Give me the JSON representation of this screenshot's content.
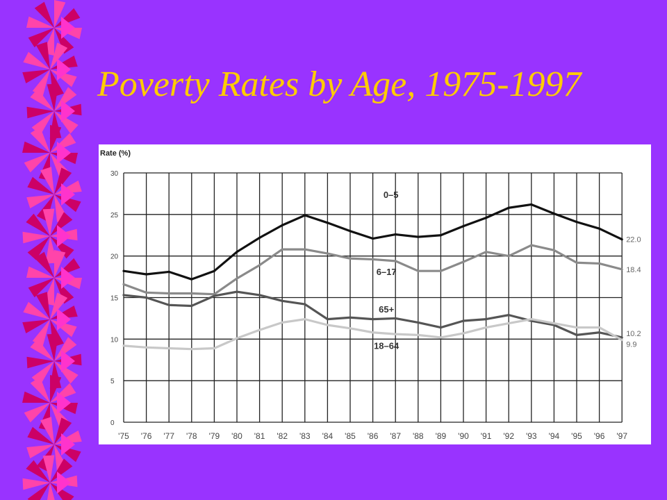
{
  "slide": {
    "title": "Poverty Rates by Age, 1975-1997",
    "colors": {
      "background": "#9933ff",
      "title": "#ffcc00",
      "decor_pink": "#ff44aa",
      "decor_dark": "#cc0066",
      "decor_magenta": "#ff33cc"
    }
  },
  "chart_data": {
    "type": "line",
    "title": "",
    "ylabel": "Rate (%)",
    "xlabel": "",
    "ylim": [
      0,
      30
    ],
    "yticks": [
      0,
      5,
      10,
      15,
      20,
      25,
      30
    ],
    "categories": [
      "'75",
      "'76",
      "'77",
      "'78",
      "'79",
      "'80",
      "'81",
      "'82",
      "'83",
      "'84",
      "'85",
      "'86",
      "'87",
      "'88",
      "'89",
      "'90",
      "'91",
      "'92",
      "'93",
      "'94",
      "'95",
      "'96",
      "'97"
    ],
    "grid": true,
    "series": [
      {
        "name": "0–5",
        "color": "#111111",
        "values": [
          18.2,
          17.8,
          18.1,
          17.2,
          18.2,
          20.5,
          22.2,
          23.7,
          24.9,
          24.0,
          23.0,
          22.1,
          22.6,
          22.3,
          22.5,
          23.6,
          24.6,
          25.8,
          26.2,
          25.1,
          24.1,
          23.3,
          22.0
        ],
        "end_label": "22.0"
      },
      {
        "name": "6–17",
        "color": "#8a8a8a",
        "values": [
          16.6,
          15.6,
          15.5,
          15.5,
          15.4,
          17.3,
          18.9,
          20.8,
          20.8,
          20.3,
          19.7,
          19.6,
          19.4,
          18.2,
          18.2,
          19.3,
          20.5,
          20.0,
          21.3,
          20.7,
          19.2,
          19.1,
          18.4
        ],
        "end_label": "18.4"
      },
      {
        "name": "65+",
        "color": "#555555",
        "values": [
          15.3,
          15.0,
          14.1,
          14.0,
          15.2,
          15.7,
          15.3,
          14.6,
          14.2,
          12.4,
          12.6,
          12.4,
          12.5,
          12.0,
          11.4,
          12.2,
          12.4,
          12.9,
          12.2,
          11.7,
          10.5,
          10.8,
          10.2
        ],
        "end_label": "10.2"
      },
      {
        "name": "18–64",
        "color": "#c8c8c8",
        "values": [
          9.2,
          9.0,
          8.9,
          8.8,
          8.9,
          10.1,
          11.1,
          12.0,
          12.4,
          11.7,
          11.3,
          10.8,
          10.6,
          10.5,
          10.2,
          10.7,
          11.4,
          11.9,
          12.4,
          11.9,
          11.4,
          11.4,
          9.9
        ],
        "end_label": "9.9"
      }
    ]
  }
}
